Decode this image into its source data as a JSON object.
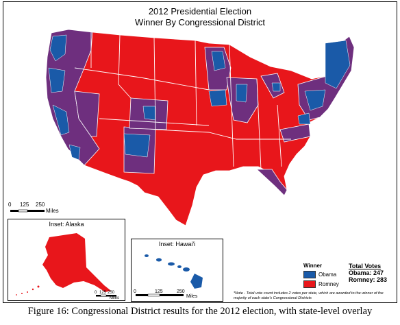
{
  "title": {
    "line1": "2012 Presidential Election",
    "line2": "Winner By Congressional District"
  },
  "main_scale": {
    "labels": [
      "0",
      "125",
      "250"
    ],
    "unit": "Miles"
  },
  "insets": {
    "alaska": {
      "title": "Inset: Alaska",
      "scale_labels": [
        "0",
        "125",
        "250"
      ],
      "unit": "Miles"
    },
    "hawaii": {
      "title": "Inset: Hawai'i",
      "scale_labels": [
        "0",
        "125",
        "250"
      ],
      "unit": "Miles"
    }
  },
  "legend": {
    "title": "Winner",
    "items": [
      {
        "label": "Obama",
        "color": "#1a5aa8"
      },
      {
        "label": "Romney",
        "color": "#e8161b"
      }
    ],
    "overlay_color": "#6e2f7e"
  },
  "totals": {
    "title": "Total Votes",
    "obama": "Obama: 247",
    "romney": "Romney: 283"
  },
  "note": "*Note - Total vote count includes 2 votes per state, which are awarded to the winner of the majority of each state's Congressional Districts",
  "caption": "Figure 16: Congressional District results for the 2012 election, with state-level overlay"
}
